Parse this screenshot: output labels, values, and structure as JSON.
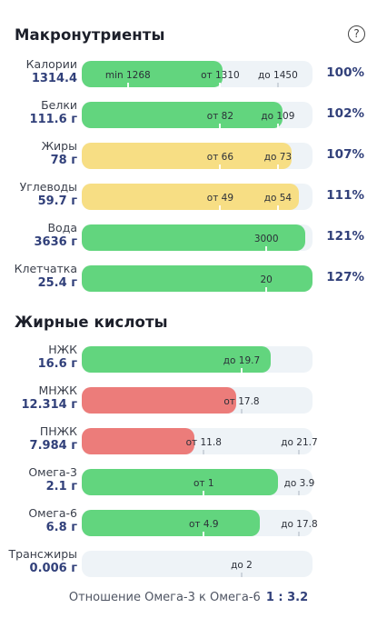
{
  "macros": {
    "title": "Макронутриенты",
    "help": "?",
    "rows": [
      {
        "name": "Калории",
        "value": "1314.4",
        "percent": "100%",
        "color": "green",
        "fill": 0.61,
        "labels": [
          {
            "text": "min 1268",
            "at": 0.2
          },
          {
            "text": "от 1310",
            "at": 0.6
          },
          {
            "text": "до 1450",
            "at": 0.85
          }
        ]
      },
      {
        "name": "Белки",
        "value": "111.6 г",
        "percent": "102%",
        "color": "green",
        "fill": 0.87,
        "labels": [
          {
            "text": "от 82",
            "at": 0.6
          },
          {
            "text": "до 109",
            "at": 0.85
          }
        ]
      },
      {
        "name": "Жиры",
        "value": "78 г",
        "percent": "107%",
        "color": "yellow",
        "fill": 0.91,
        "labels": [
          {
            "text": "от 66",
            "at": 0.6
          },
          {
            "text": "до 73",
            "at": 0.85
          }
        ]
      },
      {
        "name": "Углеводы",
        "value": "59.7 г",
        "percent": "111%",
        "color": "yellow",
        "fill": 0.94,
        "labels": [
          {
            "text": "от 49",
            "at": 0.6
          },
          {
            "text": "до 54",
            "at": 0.85
          }
        ]
      },
      {
        "name": "Вода",
        "value": "3636 г",
        "percent": "121%",
        "color": "green",
        "fill": 0.97,
        "labels": [
          {
            "text": "3000",
            "at": 0.8
          }
        ]
      },
      {
        "name": "Клетчатка",
        "value": "25.4 г",
        "percent": "127%",
        "color": "green",
        "fill": 1.0,
        "labels": [
          {
            "text": "20",
            "at": 0.8
          }
        ]
      }
    ]
  },
  "fatty_acids": {
    "title": "Жирные кислоты",
    "rows": [
      {
        "name": "НЖК",
        "value": "16.6 г",
        "percent": "",
        "color": "green",
        "fill": 0.82,
        "labels": [
          {
            "text": "до 19.7",
            "at": 0.97
          }
        ]
      },
      {
        "name": "МНЖК",
        "value": "12.314 г",
        "percent": "",
        "color": "red",
        "fill": 0.67,
        "labels": [
          {
            "text": "от 17.8",
            "at": 0.97
          }
        ]
      },
      {
        "name": "ПНЖК",
        "value": "7.984 г",
        "percent": "",
        "color": "red",
        "fill": 0.49,
        "labels": [
          {
            "text": "от 11.8",
            "at": 0.74
          },
          {
            "text": "до 21.7",
            "at": 1.32
          }
        ]
      },
      {
        "name": "Омега-3",
        "value": "2.1 г",
        "percent": "",
        "color": "green",
        "fill": 0.85,
        "labels": [
          {
            "text": "от 1",
            "at": 0.74
          },
          {
            "text": "до 3.9",
            "at": 1.32
          }
        ]
      },
      {
        "name": "Омега-6",
        "value": "6.8 г",
        "percent": "",
        "color": "green",
        "fill": 0.77,
        "labels": [
          {
            "text": "от 4.9",
            "at": 0.74
          },
          {
            "text": "до 17.8",
            "at": 1.32
          }
        ]
      },
      {
        "name": "Трансжиры",
        "value": "0.006 г",
        "percent": "",
        "color": "green",
        "fill": 0.0,
        "labels": [
          {
            "text": "до 2",
            "at": 0.97
          }
        ]
      }
    ]
  },
  "ratio": {
    "label": "Отношение Омега-3 к Омега-6",
    "value": "1 : 3.2"
  },
  "colors": {
    "green": "#62d57e",
    "yellow": "#f7de84",
    "red": "#ec7c7a",
    "track": "#eef3f7",
    "accent": "#31407a"
  }
}
